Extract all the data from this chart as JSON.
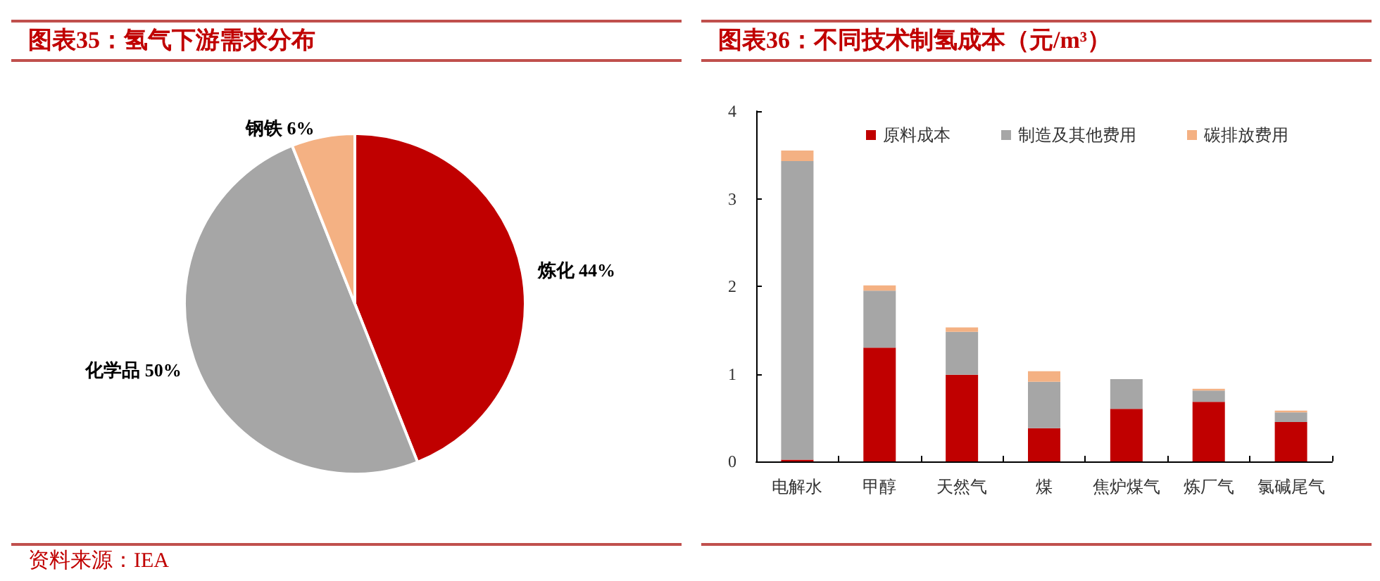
{
  "chart_data": [
    {
      "type": "pie",
      "title": "图表35：氢气下游需求分布",
      "categories": [
        "炼化",
        "化学品",
        "钢铁"
      ],
      "values": [
        44,
        50,
        6
      ],
      "value_labels": [
        "44%",
        "50%",
        "6%"
      ],
      "colors": [
        "#c00000",
        "#a6a6a6",
        "#f4b183"
      ],
      "annotations": [
        "资料来源：IEA"
      ]
    },
    {
      "type": "bar",
      "title": "图表36：不同技术制氢成本（元/m³）",
      "categories": [
        "电解水",
        "甲醇",
        "天然气",
        "煤",
        "焦炉煤气",
        "炼厂气",
        "氯碱尾气"
      ],
      "stacked": true,
      "series": [
        {
          "name": "原料成本",
          "color": "#c00000",
          "values": [
            0.02,
            1.3,
            0.99,
            0.38,
            0.6,
            0.68,
            0.45
          ]
        },
        {
          "name": "制造及其他费用",
          "color": "#a6a6a6",
          "values": [
            3.41,
            0.65,
            0.49,
            0.53,
            0.34,
            0.13,
            0.11
          ]
        },
        {
          "name": "碳排放费用",
          "color": "#f4b183",
          "values": [
            0.12,
            0.06,
            0.05,
            0.12,
            0,
            0.02,
            0.02
          ]
        }
      ],
      "ylim": [
        0,
        4
      ],
      "yticks": [
        0,
        1,
        2,
        3,
        4
      ],
      "legend": "top right"
    }
  ]
}
